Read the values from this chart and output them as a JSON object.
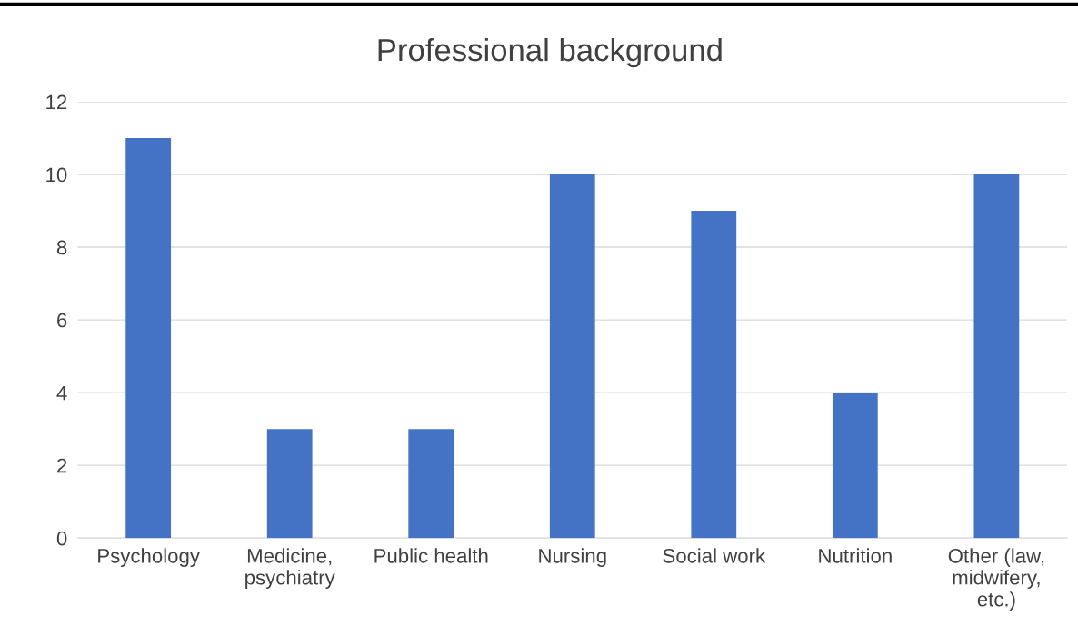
{
  "chart_data": {
    "type": "bar",
    "title": "Professional background",
    "categories": [
      "Psychology",
      "Medicine,\npsychiatry",
      "Public health",
      "Nursing",
      "Social work",
      "Nutrition",
      "Other (law,\nmidwifery,\netc.)"
    ],
    "values": [
      11,
      3,
      3,
      10,
      9,
      4,
      10
    ],
    "color": "#4472c4",
    "ylim": [
      0,
      12
    ],
    "yticks": [
      0,
      2,
      4,
      6,
      8,
      10,
      12
    ],
    "grid": "y",
    "legend": false
  }
}
